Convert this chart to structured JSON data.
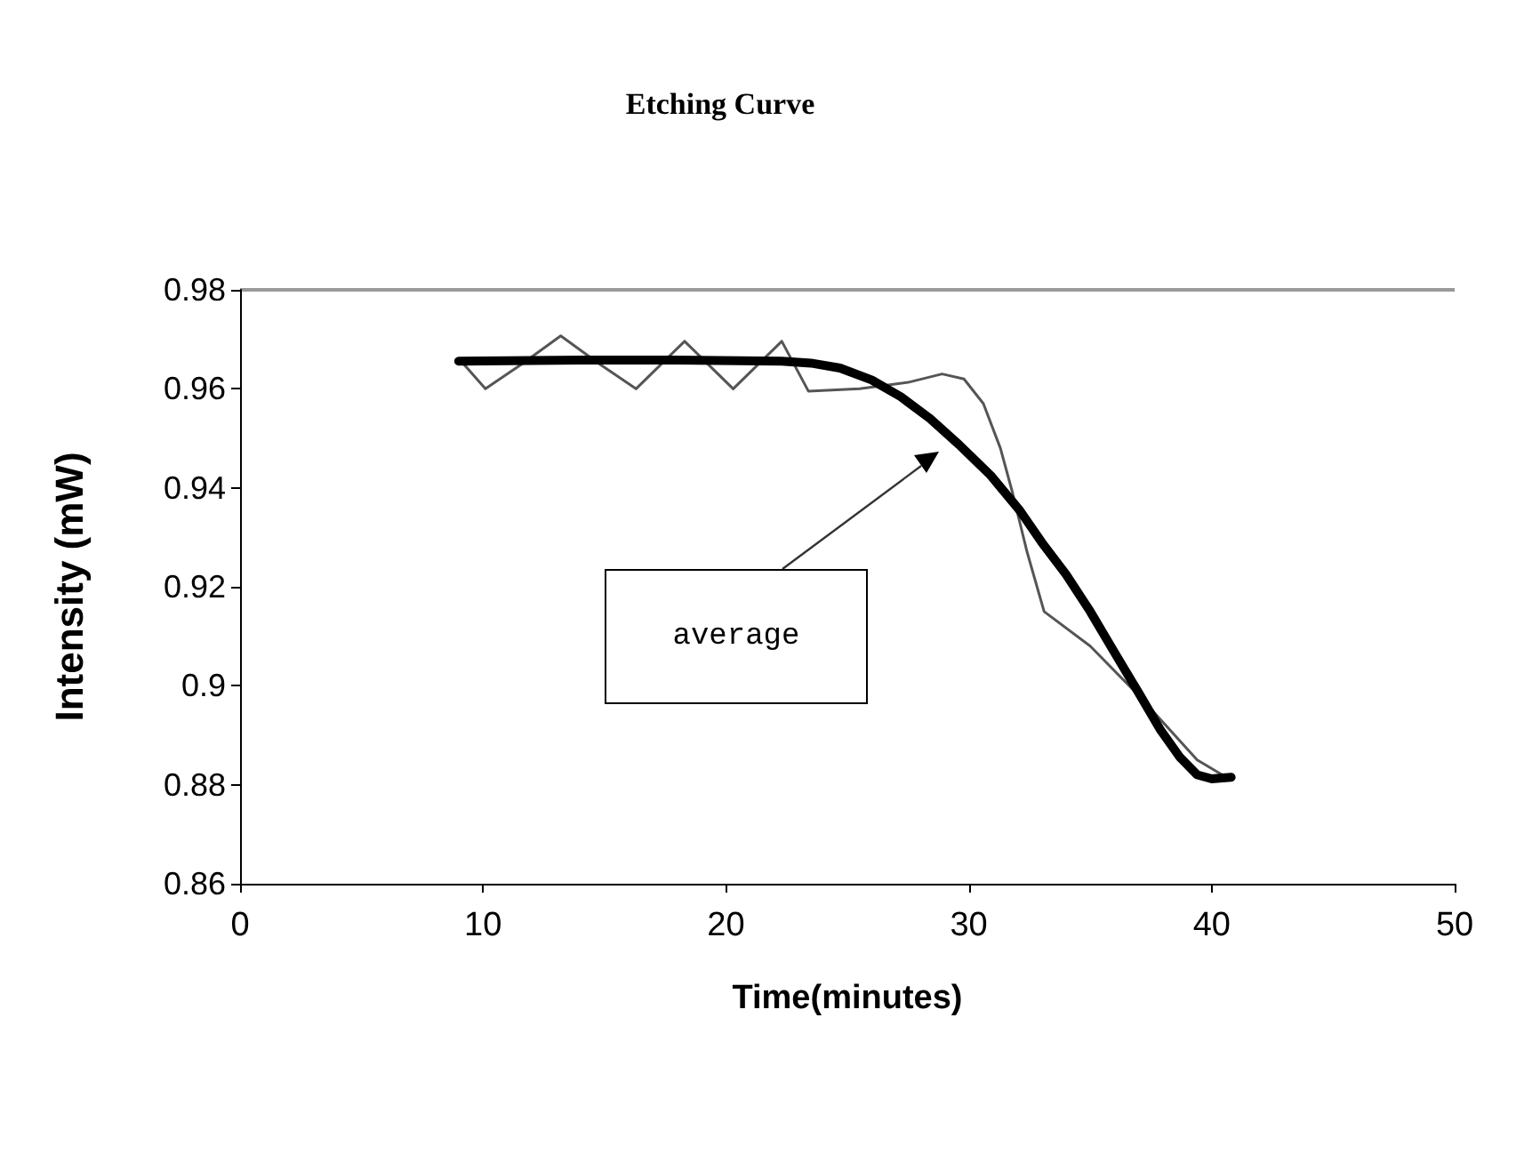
{
  "chart_data": {
    "type": "line",
    "title": "Etching Curve",
    "xlabel": "Time(minutes)",
    "ylabel": "Intensity (mW)",
    "xlim": [
      0,
      50
    ],
    "xticks": [
      0,
      10,
      20,
      30,
      40,
      50
    ],
    "ylim": [
      0.86,
      0.98
    ],
    "yticks": [
      0.86,
      0.88,
      0.9,
      0.92,
      0.94,
      0.96,
      0.98
    ],
    "grid": false,
    "marker": "none",
    "line_style": "solid",
    "annotations": [
      "average"
    ],
    "series": [
      {
        "color": "#555555",
        "x": [
          9.1,
          10.1,
          11.6,
          13.2,
          14.8,
          16.3,
          17.3,
          18.3,
          19.3,
          20.3,
          21.3,
          22.3,
          23.4,
          25.5,
          27.5,
          28.9,
          29.8,
          30.6,
          31.3,
          31.8,
          32.4,
          33.1,
          35.0,
          37.0,
          39.4,
          40.6
        ],
        "values": [
          0.9656,
          0.96,
          0.965,
          0.9707,
          0.965,
          0.96,
          0.9648,
          0.9696,
          0.9648,
          0.96,
          0.9648,
          0.9696,
          0.9595,
          0.96,
          0.9613,
          0.963,
          0.962,
          0.957,
          0.948,
          0.939,
          0.927,
          0.915,
          0.908,
          0.898,
          0.885,
          0.8815
        ]
      },
      {
        "color": "#000000",
        "x": [
          9.0,
          14,
          18,
          22.3,
          23.5,
          24.7,
          26.0,
          27.2,
          28.4,
          29.6,
          30.9,
          32.1,
          33.0,
          34.0,
          35.0,
          36.0,
          37.0,
          37.9,
          38.7,
          39.4,
          40.0,
          40.8
        ],
        "values": [
          0.9656,
          0.9658,
          0.9658,
          0.9656,
          0.9652,
          0.9642,
          0.9618,
          0.9584,
          0.954,
          0.9487,
          0.9425,
          0.9354,
          0.929,
          0.9225,
          0.915,
          0.9067,
          0.8985,
          0.891,
          0.8855,
          0.882,
          0.8812,
          0.8815
        ]
      }
    ]
  }
}
